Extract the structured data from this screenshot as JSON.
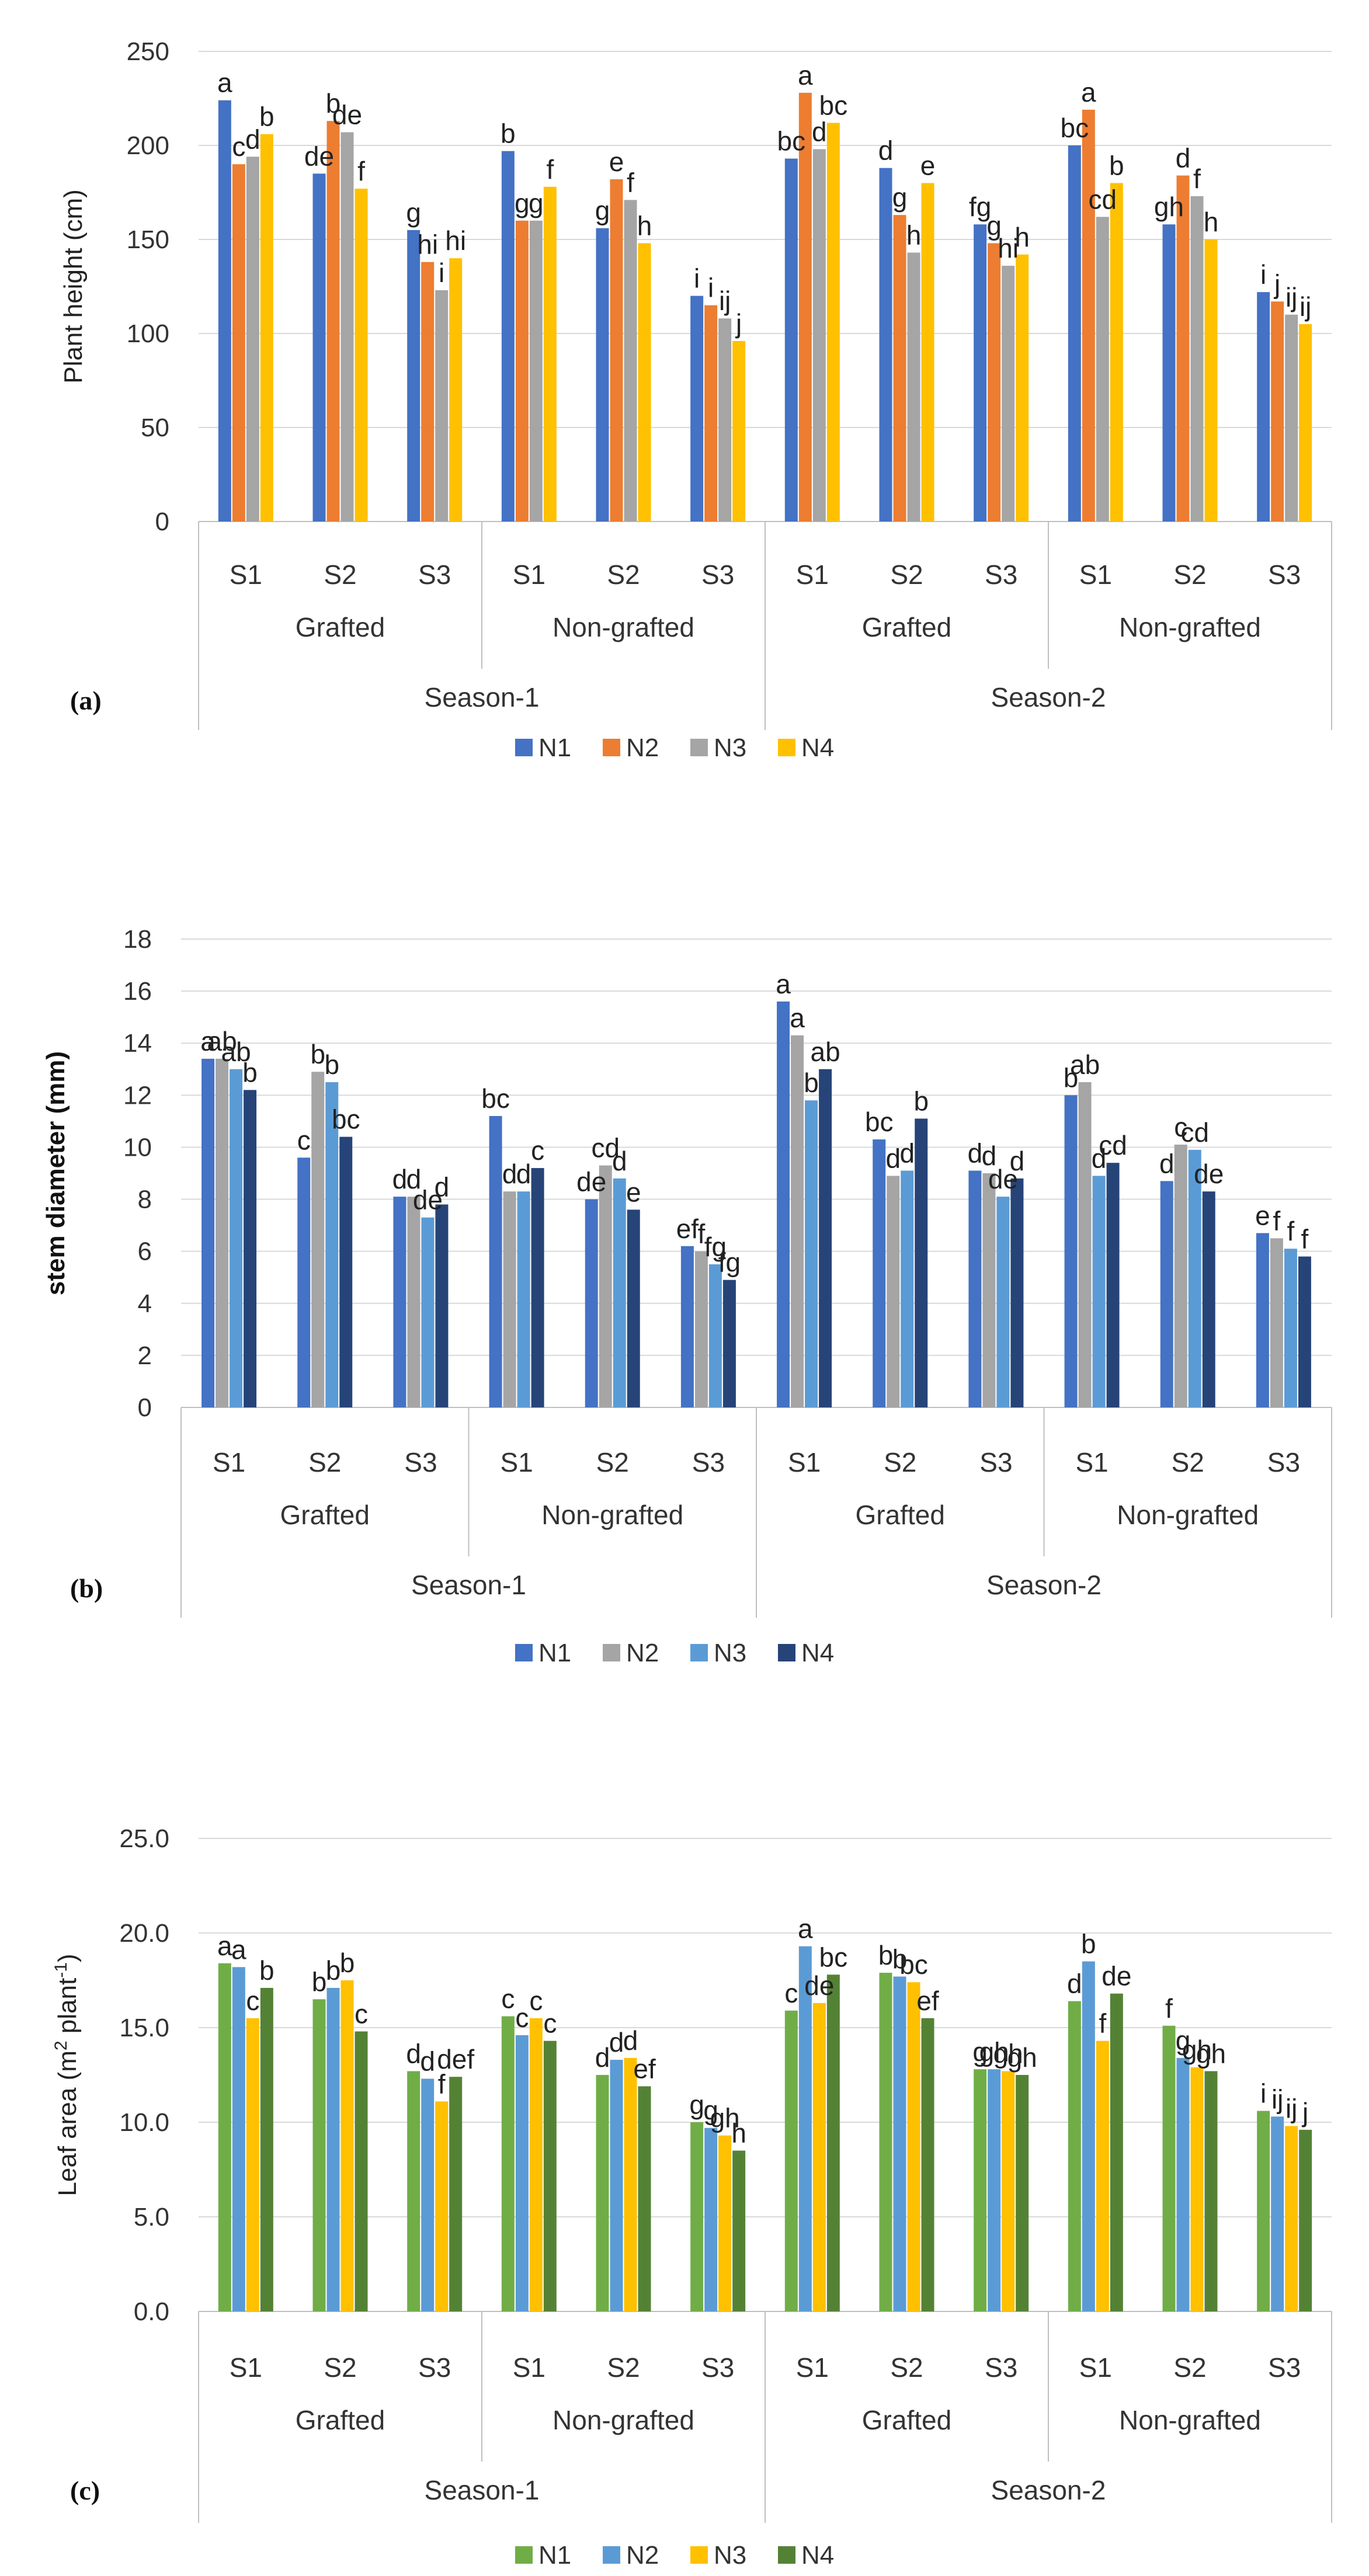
{
  "chart_data": [
    {
      "type": "bar",
      "panel_label": "(a)",
      "ylabel": "Plant height (cm)",
      "ylim": [
        0,
        250
      ],
      "yticks": [
        "0",
        "50",
        "100",
        "150",
        "200",
        "250"
      ],
      "seasons": [
        "Season-1",
        "Season-2"
      ],
      "grafting": [
        "Grafted",
        "Non-grafted"
      ],
      "categories": [
        "S1",
        "S2",
        "S3",
        "S1",
        "S2",
        "S3",
        "S1",
        "S2",
        "S3",
        "S1",
        "S2",
        "S3"
      ],
      "series": [
        {
          "name": "N1",
          "color": "#4472C4",
          "values": [
            224,
            185,
            155,
            197,
            156,
            120,
            193,
            188,
            158,
            200,
            158,
            122
          ],
          "letters": [
            "a",
            "de",
            "g",
            "b",
            "g",
            "i",
            "bc",
            "d",
            "fg",
            "bc",
            "gh",
            "i"
          ]
        },
        {
          "name": "N2",
          "color": "#ED7D31",
          "values": [
            190,
            213,
            138,
            160,
            182,
            115,
            228,
            163,
            148,
            219,
            184,
            117
          ],
          "letters": [
            "c",
            "b",
            "hi",
            "g",
            "e",
            "i",
            "a",
            "g",
            "g",
            "a",
            "d",
            "j"
          ]
        },
        {
          "name": "N3",
          "color": "#A5A5A5",
          "values": [
            194,
            207,
            123,
            160,
            171,
            108,
            198,
            143,
            136,
            162,
            173,
            110
          ],
          "letters": [
            "d",
            "de",
            "i",
            "g",
            "f",
            "ij",
            "d",
            "h",
            "hi",
            "cd",
            "f",
            "ij"
          ]
        },
        {
          "name": "N4",
          "color": "#FFC000",
          "values": [
            206,
            177,
            140,
            178,
            148,
            96,
            212,
            180,
            142,
            180,
            150,
            105
          ],
          "letters": [
            "b",
            "f",
            "hi",
            "f",
            "h",
            "j",
            "bc",
            "e",
            "h",
            "b",
            "h",
            "ij"
          ]
        }
      ]
    },
    {
      "type": "bar",
      "panel_label": "(b)",
      "ylabel": "stem diameter (mm)",
      "ylim": [
        0,
        18
      ],
      "yticks": [
        "0",
        "2",
        "4",
        "6",
        "8",
        "10",
        "12",
        "14",
        "16",
        "18"
      ],
      "seasons": [
        "Season-1",
        "Season-2"
      ],
      "grafting": [
        "Grafted",
        "Non-grafted"
      ],
      "categories": [
        "S1",
        "S2",
        "S3",
        "S1",
        "S2",
        "S3",
        "S1",
        "S2",
        "S3",
        "S1",
        "S2",
        "S3"
      ],
      "series": [
        {
          "name": "N1",
          "color": "#4472C4",
          "values": [
            13.4,
            9.6,
            8.1,
            11.2,
            8.0,
            6.2,
            15.6,
            10.3,
            9.1,
            12.0,
            8.7,
            6.7
          ],
          "letters": [
            "a",
            "c",
            "d",
            "bc",
            "de",
            "ef",
            "a",
            "bc",
            "d",
            "b",
            "d",
            "e"
          ]
        },
        {
          "name": "N2",
          "color": "#A5A5A5",
          "values": [
            13.4,
            12.9,
            8.1,
            8.3,
            9.3,
            6.0,
            14.3,
            8.9,
            9.0,
            12.5,
            10.1,
            6.5
          ],
          "letters": [
            "ab",
            "b",
            "d",
            "d",
            "cd",
            "f",
            "a",
            "d",
            "d",
            "ab",
            "c",
            "f"
          ]
        },
        {
          "name": "N3",
          "color": "#5B9BD5",
          "values": [
            13.0,
            12.5,
            7.3,
            8.3,
            8.8,
            5.5,
            11.8,
            9.1,
            8.1,
            8.9,
            9.9,
            6.1
          ],
          "letters": [
            "ab",
            "b",
            "de",
            "d",
            "d",
            "fg",
            "b",
            "d",
            "de",
            "d",
            "cd",
            "f"
          ]
        },
        {
          "name": "N4",
          "color": "#264478",
          "values": [
            12.2,
            10.4,
            7.8,
            9.2,
            7.6,
            4.9,
            13.0,
            11.1,
            8.8,
            9.4,
            8.3,
            5.8
          ],
          "letters": [
            "b",
            "bc",
            "d",
            "c",
            "e",
            "fg",
            "ab",
            "b",
            "d",
            "cd",
            "de",
            "f"
          ]
        }
      ]
    },
    {
      "type": "bar",
      "panel_label": "(c)",
      "ylabel_main": "Leaf area (m",
      "ylabel_sup1": "2",
      "ylabel_mid": " plant",
      "ylabel_sup2": "-1",
      "ylabel_end": ")",
      "ylim": [
        0,
        25
      ],
      "yticks": [
        "0.0",
        "5.0",
        "10.0",
        "15.0",
        "20.0",
        "25.0"
      ],
      "seasons": [
        "Season-1",
        "Season-2"
      ],
      "grafting": [
        "Grafted",
        "Non-grafted"
      ],
      "categories": [
        "S1",
        "S2",
        "S3",
        "S1",
        "S2",
        "S3",
        "S1",
        "S2",
        "S3",
        "S1",
        "S2",
        "S3"
      ],
      "series": [
        {
          "name": "N1",
          "color": "#70AD47",
          "values": [
            18.4,
            16.5,
            12.7,
            15.6,
            12.5,
            10.0,
            15.9,
            17.9,
            12.8,
            16.4,
            15.1,
            10.6
          ],
          "letters": [
            "a",
            "b",
            "d",
            "c",
            "d",
            "g",
            "c",
            "b",
            "g",
            "d",
            "f",
            "i"
          ]
        },
        {
          "name": "N2",
          "color": "#5B9BD5",
          "values": [
            18.2,
            17.1,
            12.3,
            14.6,
            13.3,
            9.7,
            19.3,
            17.7,
            12.8,
            18.5,
            13.4,
            10.3
          ],
          "letters": [
            "a",
            "b",
            "d",
            "c",
            "d",
            "g",
            "a",
            "b",
            "gh",
            "b",
            "g",
            "ij"
          ]
        },
        {
          "name": "N3",
          "color": "#FFC000",
          "values": [
            15.5,
            17.5,
            11.1,
            15.5,
            13.4,
            9.3,
            16.3,
            17.4,
            12.7,
            14.3,
            12.9,
            9.8
          ],
          "letters": [
            "c",
            "b",
            "f",
            "c",
            "d",
            "gh",
            "de",
            "bc",
            "gh",
            "f",
            "gh",
            "ij"
          ]
        },
        {
          "name": "N4",
          "color": "#548235",
          "values": [
            17.1,
            14.8,
            12.4,
            14.3,
            11.9,
            8.5,
            17.8,
            15.5,
            12.5,
            16.8,
            12.7,
            9.6
          ],
          "letters": [
            "b",
            "c",
            "def",
            "c",
            "ef",
            "h",
            "bc",
            "ef",
            "gh",
            "de",
            "gh",
            "j"
          ]
        }
      ]
    }
  ]
}
